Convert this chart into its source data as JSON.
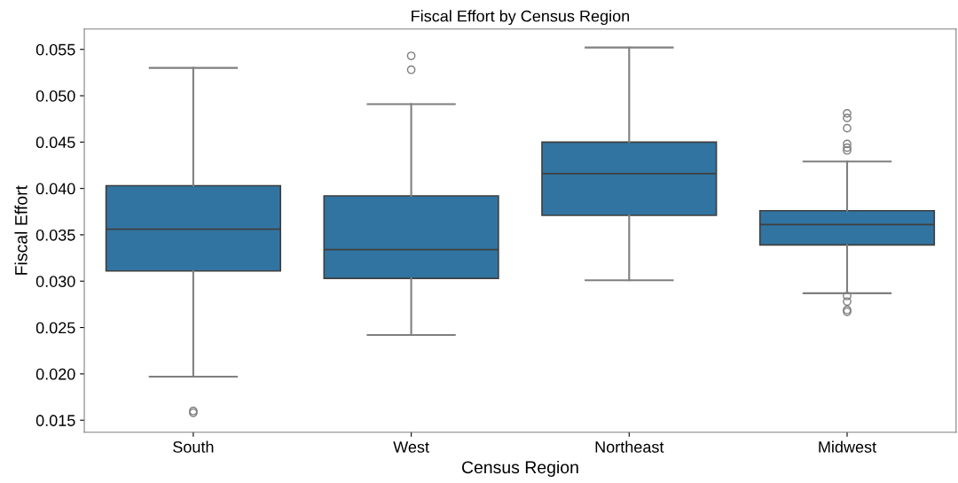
{
  "chart_data": {
    "type": "box",
    "title": "Fiscal Effort by Census Region",
    "xlabel": "Census Region",
    "ylabel": "Fiscal Effort",
    "categories": [
      "South",
      "West",
      "Northeast",
      "Midwest"
    ],
    "boxes": [
      {
        "low": 0.0197,
        "q1": 0.0311,
        "median": 0.0356,
        "q3": 0.0403,
        "high": 0.053,
        "outliers": [
          0.016,
          0.0158
        ]
      },
      {
        "low": 0.0242,
        "q1": 0.0303,
        "median": 0.0334,
        "q3": 0.0392,
        "high": 0.0491,
        "outliers": [
          0.0543,
          0.0528
        ]
      },
      {
        "low": 0.0301,
        "q1": 0.0371,
        "median": 0.0416,
        "q3": 0.045,
        "high": 0.0552
      },
      {
        "low": 0.0287,
        "q1": 0.0339,
        "median": 0.0361,
        "q3": 0.0376,
        "high": 0.0429,
        "outliers": [
          0.0481,
          0.0476,
          0.0465,
          0.0448,
          0.0444,
          0.0441,
          0.0284,
          0.0278,
          0.0269,
          0.0267
        ]
      }
    ],
    "color": "#3274a1",
    "ylim": [
      0.0137,
      0.0572
    ],
    "yticks": [
      {
        "value": 0.015,
        "label": "0.015"
      },
      {
        "value": 0.02,
        "label": "0.020"
      },
      {
        "value": 0.025,
        "label": "0.025"
      },
      {
        "value": 0.03,
        "label": "0.030"
      },
      {
        "value": 0.035,
        "label": "0.035"
      },
      {
        "value": 0.04,
        "label": "0.040"
      },
      {
        "value": 0.045,
        "label": "0.045"
      },
      {
        "value": 0.05,
        "label": "0.050"
      },
      {
        "value": 0.055,
        "label": "0.055"
      }
    ],
    "grid": false
  }
}
